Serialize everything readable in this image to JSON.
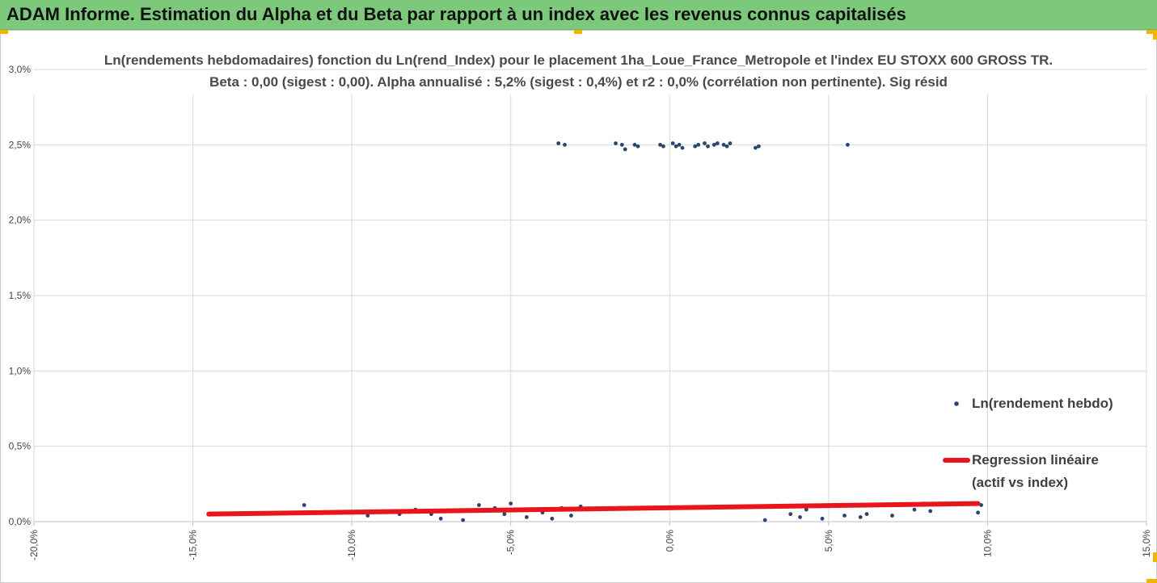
{
  "banner": {
    "title": "ADAM Informe. Estimation du Alpha et du Beta par rapport à un index avec les revenus connus capitalisés"
  },
  "colors": {
    "banner": "#7dc97b",
    "points": "#2a4570",
    "regression": "#e8161c",
    "grid": "#d9d9d9",
    "handles": "#f2b400"
  },
  "chart_data": {
    "type": "scatter",
    "title_line1": "Ln(rendements hebdomadaires) fonction du Ln(rend_Index)  pour le placement 1ha_Loue_France_Metropole et l'index EU STOXX 600 GROSS TR.",
    "title_line2": "Beta : 0,00 (sigest : 0,00). Alpha annualisé : 5,2% (sigest : 0,4%) et r2 : 0,0% (corrélation non pertinente). Sig résid",
    "xlim": [
      -0.2,
      0.15
    ],
    "ylim": [
      0.0,
      0.03
    ],
    "x_ticks": [
      -0.2,
      -0.15,
      -0.1,
      -0.05,
      0.0,
      0.05,
      0.1,
      0.15
    ],
    "x_tick_labels": [
      "-20,0%",
      "-15,0%",
      "-10,0%",
      "-5,0%",
      "0,0%",
      "5,0%",
      "10,0%",
      "15,0%"
    ],
    "y_ticks": [
      0.0,
      0.005,
      0.01,
      0.015,
      0.02,
      0.025,
      0.03
    ],
    "y_tick_labels": [
      "0,0%",
      "0,5%",
      "1,0%",
      "1,5%",
      "2,0%",
      "2,5%",
      "3,0%"
    ],
    "grid": "vertical and horizontal",
    "legend_position": "right",
    "series": [
      {
        "name": "Ln(rendement hebdo)",
        "kind": "points",
        "points": [
          [
            -0.035,
            0.0251
          ],
          [
            -0.033,
            0.025
          ],
          [
            -0.017,
            0.0251
          ],
          [
            -0.015,
            0.025
          ],
          [
            -0.014,
            0.0247
          ],
          [
            -0.011,
            0.025
          ],
          [
            -0.01,
            0.0249
          ],
          [
            -0.003,
            0.025
          ],
          [
            -0.002,
            0.0249
          ],
          [
            0.001,
            0.0251
          ],
          [
            0.002,
            0.0249
          ],
          [
            0.003,
            0.025
          ],
          [
            0.004,
            0.0248
          ],
          [
            0.008,
            0.0249
          ],
          [
            0.009,
            0.025
          ],
          [
            0.011,
            0.0251
          ],
          [
            0.012,
            0.0249
          ],
          [
            0.014,
            0.025
          ],
          [
            0.015,
            0.0251
          ],
          [
            0.017,
            0.025
          ],
          [
            0.018,
            0.0249
          ],
          [
            0.019,
            0.0251
          ],
          [
            0.027,
            0.0248
          ],
          [
            0.028,
            0.0249
          ],
          [
            0.056,
            0.025
          ],
          [
            -0.145,
            0.0005
          ],
          [
            -0.14,
            0.0005
          ],
          [
            -0.115,
            0.0011
          ],
          [
            -0.095,
            0.0004
          ],
          [
            -0.085,
            0.0005
          ],
          [
            -0.08,
            0.0008
          ],
          [
            -0.075,
            0.0005
          ],
          [
            -0.072,
            0.0002
          ],
          [
            -0.066,
            0.0007
          ],
          [
            -0.065,
            0.0001
          ],
          [
            -0.06,
            0.0011
          ],
          [
            -0.055,
            0.0009
          ],
          [
            -0.052,
            0.0005
          ],
          [
            -0.05,
            0.0012
          ],
          [
            -0.045,
            0.0003
          ],
          [
            0.048,
            0.0002
          ],
          [
            0.055,
            0.0004
          ],
          [
            0.06,
            0.0003
          ],
          [
            0.062,
            0.0005
          ],
          [
            0.07,
            0.0004
          ],
          [
            0.077,
            0.0008
          ],
          [
            0.08,
            0.0012
          ],
          [
            0.082,
            0.0007
          ],
          [
            0.097,
            0.0006
          ],
          [
            0.098,
            0.0011
          ],
          [
            0.035,
            0.001
          ],
          [
            0.038,
            0.0005
          ],
          [
            0.041,
            0.0003
          ],
          [
            0.043,
            0.0008
          ],
          [
            0.03,
            0.0001
          ],
          [
            -0.04,
            0.0006
          ],
          [
            -0.037,
            0.0002
          ],
          [
            -0.034,
            0.0009
          ],
          [
            -0.031,
            0.0004
          ],
          [
            -0.028,
            0.001
          ]
        ]
      },
      {
        "name": "Regression linéaire (actif vs index)",
        "name_line1": "Regression linéaire",
        "name_line2": "(actif vs index)",
        "kind": "line",
        "x": [
          -0.145,
          0.097
        ],
        "y": [
          0.0005,
          0.0012
        ]
      }
    ]
  }
}
